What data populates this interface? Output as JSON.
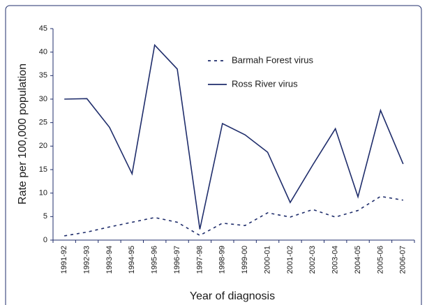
{
  "chart_data": {
    "type": "line",
    "xlabel": "Year of diagnosis",
    "ylabel": "Rate per 100,000 population",
    "categories": [
      "1991-92",
      "1992-93",
      "1993-94",
      "1994-95",
      "1995-96",
      "1996-97",
      "1997-98",
      "1998-99",
      "1999-00",
      "2000-01",
      "2001-02",
      "2002-03",
      "2003-04",
      "2004-05",
      "2005-06",
      "2006-07"
    ],
    "series": [
      {
        "name": "Barmah Forest virus",
        "color": "#1f2d6b",
        "linestyle": "dashed",
        "values": [
          0.9,
          1.7,
          2.8,
          3.8,
          4.8,
          3.8,
          1.0,
          3.6,
          3.1,
          5.8,
          4.9,
          6.5,
          4.9,
          6.3,
          9.3,
          8.5
        ]
      },
      {
        "name": "Ross River virus",
        "color": "#1f2d6b",
        "linestyle": "solid",
        "values": [
          30.0,
          30.1,
          24.0,
          14.1,
          41.5,
          36.4,
          2.3,
          24.8,
          22.4,
          18.7,
          8.0,
          16.0,
          23.7,
          9.2,
          27.6,
          16.2
        ]
      }
    ],
    "ylim": [
      0,
      45
    ],
    "yticks": [
      0,
      5,
      10,
      15,
      20,
      25,
      30,
      35,
      40,
      45
    ],
    "grid": false,
    "legend": "upper center"
  }
}
